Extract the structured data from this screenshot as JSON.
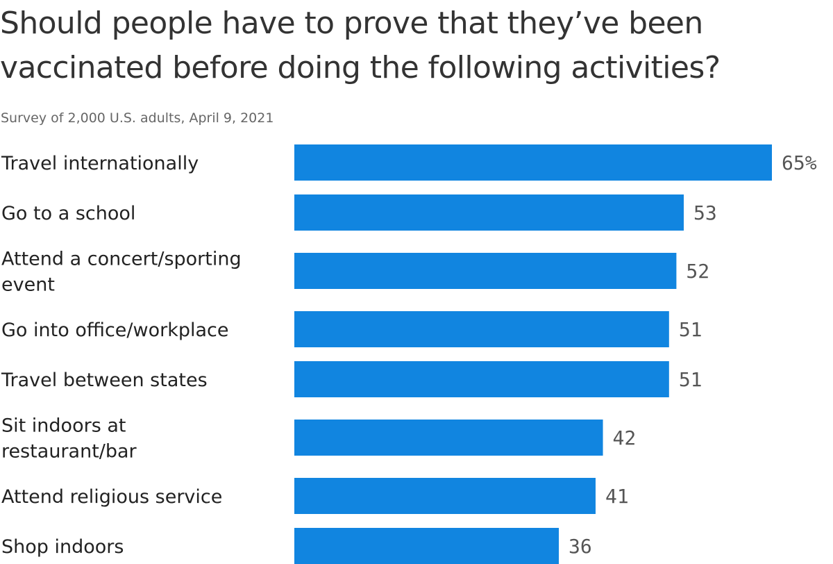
{
  "title": "Should people have to prove that they’ve been vaccinated before doing the following activities?",
  "subtitle": "Survey of 2,000 U.S. adults, April 9, 2021",
  "chart_data": {
    "type": "bar",
    "orientation": "horizontal",
    "categories": [
      [
        "Travel internationally"
      ],
      [
        "Go to a school"
      ],
      [
        "Attend a concert/sporting",
        "event"
      ],
      [
        "Go into office/workplace"
      ],
      [
        "Travel between states"
      ],
      [
        "Sit indoors at",
        "restaurant/bar"
      ],
      [
        "Attend religious service"
      ],
      [
        "Shop indoors"
      ]
    ],
    "values": [
      65,
      53,
      52,
      51,
      51,
      42,
      41,
      36
    ],
    "value_labels": [
      "65%",
      "53",
      "52",
      "51",
      "51",
      "42",
      "41",
      "36"
    ],
    "unit": "%",
    "bar_color": "#1185e0",
    "xlim": [
      0,
      65
    ],
    "grid": false,
    "legend": "none"
  }
}
